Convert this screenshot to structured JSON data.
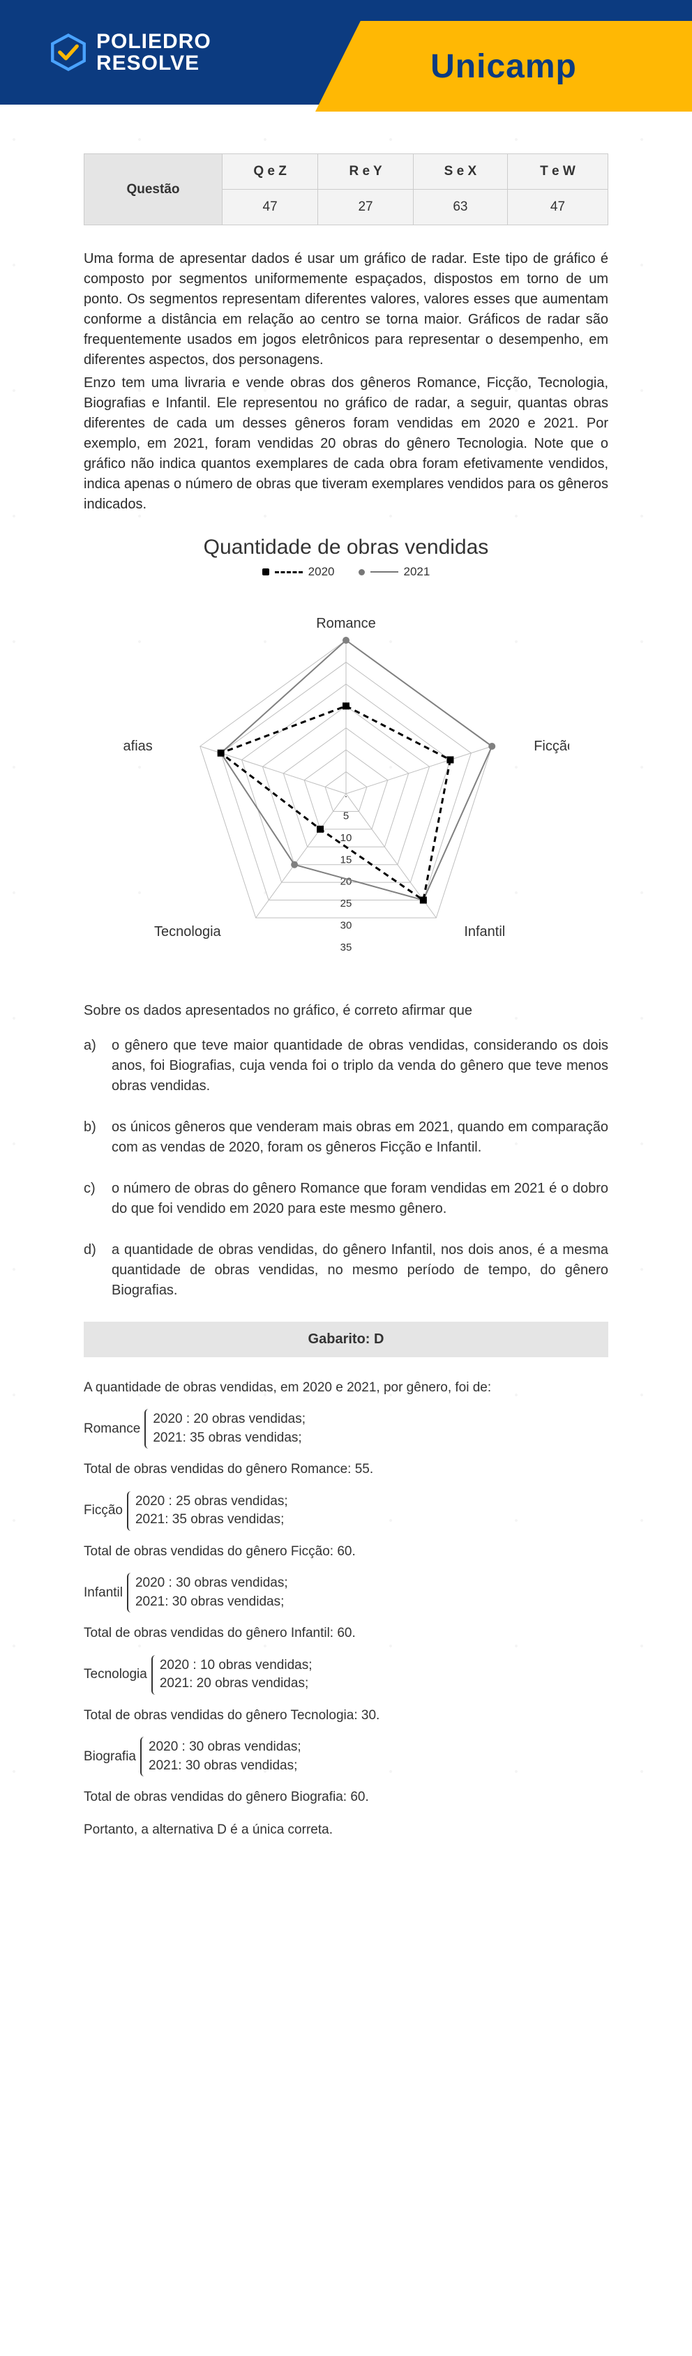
{
  "header": {
    "brand_line1": "POLIEDRO",
    "brand_line2": "RESOLVE",
    "exam": "Unicamp",
    "colors": {
      "blue": "#0c3b80",
      "yellow": "#ffb804"
    }
  },
  "table": {
    "row_label": "Questão",
    "headers": [
      "Q e Z",
      "R e Y",
      "S e X",
      "T e W"
    ],
    "values": [
      "47",
      "27",
      "63",
      "47"
    ]
  },
  "paragraph1": "Uma forma de apresentar dados é usar um gráfico de radar. Este tipo de gráfico é composto por segmentos uniformemente espaçados, dispostos em torno de um ponto. Os segmentos representam diferentes valores, valores esses que aumentam conforme a distância em relação ao centro se torna maior. Gráficos de radar são frequentemente usados em jogos eletrônicos para representar o desempenho, em diferentes aspectos, dos personagens.",
  "paragraph2": "Enzo tem uma livraria e vende obras dos gêneros Romance, Ficção, Tecnologia, Biografias e Infantil. Ele representou no gráfico de radar, a seguir, quantas obras diferentes de cada um desses gêneros foram vendidas em 2020 e 2021. Por exemplo, em 2021, foram vendidas 20 obras do gênero Tecnologia. Note que o gráfico não indica quantos exemplares de cada obra foram efetivamente vendidos, indica apenas o número de obras que tiveram exemplares vendidos para os gêneros indicados.",
  "chart": {
    "title": "Quantidade de obras vendidas",
    "legend": {
      "series1": "2020",
      "series2": "2021"
    },
    "axes": [
      "Romance",
      "Ficção",
      "Infantil",
      "Tecnologia",
      "Biografias"
    ],
    "ticks": [
      ".",
      "5",
      "10",
      "15",
      "20",
      "25",
      "30",
      "35"
    ],
    "max": 35,
    "series_2020": {
      "data": [
        20,
        25,
        30,
        10,
        30
      ],
      "color": "#000000",
      "dash": "8 6",
      "width": 3,
      "marker": "square"
    },
    "series_2021": {
      "data": [
        35,
        35,
        30,
        20,
        30
      ],
      "color": "#808080",
      "dash": "",
      "width": 2,
      "marker": "circle"
    }
  },
  "after_chart": "Sobre os dados apresentados no gráfico, é correto afirmar que",
  "options": [
    {
      "label": "a)",
      "text": "o gênero que teve maior quantidade de obras vendidas, considerando os dois anos, foi Biografias, cuja venda foi o triplo da venda do gênero que teve menos obras vendidas."
    },
    {
      "label": "b)",
      "text": "os únicos gêneros que venderam mais obras em 2021, quando em comparação com as vendas de 2020, foram os gêneros Ficção e Infantil."
    },
    {
      "label": "c)",
      "text": "o número de obras do gênero Romance que foram vendidas em 2021 é o dobro do que foi vendido em 2020 para este mesmo gênero."
    },
    {
      "label": "d)",
      "text": "a quantidade de obras vendidas, do gênero Infantil, nos dois anos, é a mesma quantidade de obras vendidas, no mesmo período de tempo, do gênero Biografias."
    }
  ],
  "gabarito": "Gabarito: D",
  "solution": {
    "intro": "A quantidade de obras vendidas, em 2020 e 2021, por gênero, foi de:",
    "items": [
      {
        "label": "Romance",
        "l1": "2020 : 20 obras vendidas;",
        "l2": "2021: 35 obras vendidas;",
        "total": "Total de obras vendidas do gênero Romance: 55."
      },
      {
        "label": "Ficção",
        "l1": "2020 : 25 obras vendidas;",
        "l2": "2021: 35 obras vendidas;",
        "total": "Total de obras vendidas do gênero Ficção: 60."
      },
      {
        "label": "Infantil",
        "l1": "2020 : 30 obras vendidas;",
        "l2": "2021: 30 obras vendidas;",
        "total": "Total de obras vendidas do gênero Infantil: 60."
      },
      {
        "label": "Tecnologia",
        "l1": "2020 : 10 obras vendidas;",
        "l2": "2021: 20 obras vendidas;",
        "total": "Total de obras vendidas do gênero Tecnologia: 30."
      },
      {
        "label": "Biografia",
        "l1": "2020 : 30 obras vendidas;",
        "l2": "2021: 30 obras vendidas;",
        "total": "Total de obras vendidas do gênero Biografia: 60."
      }
    ],
    "final": "Portanto, a alternativa D é a única correta."
  }
}
